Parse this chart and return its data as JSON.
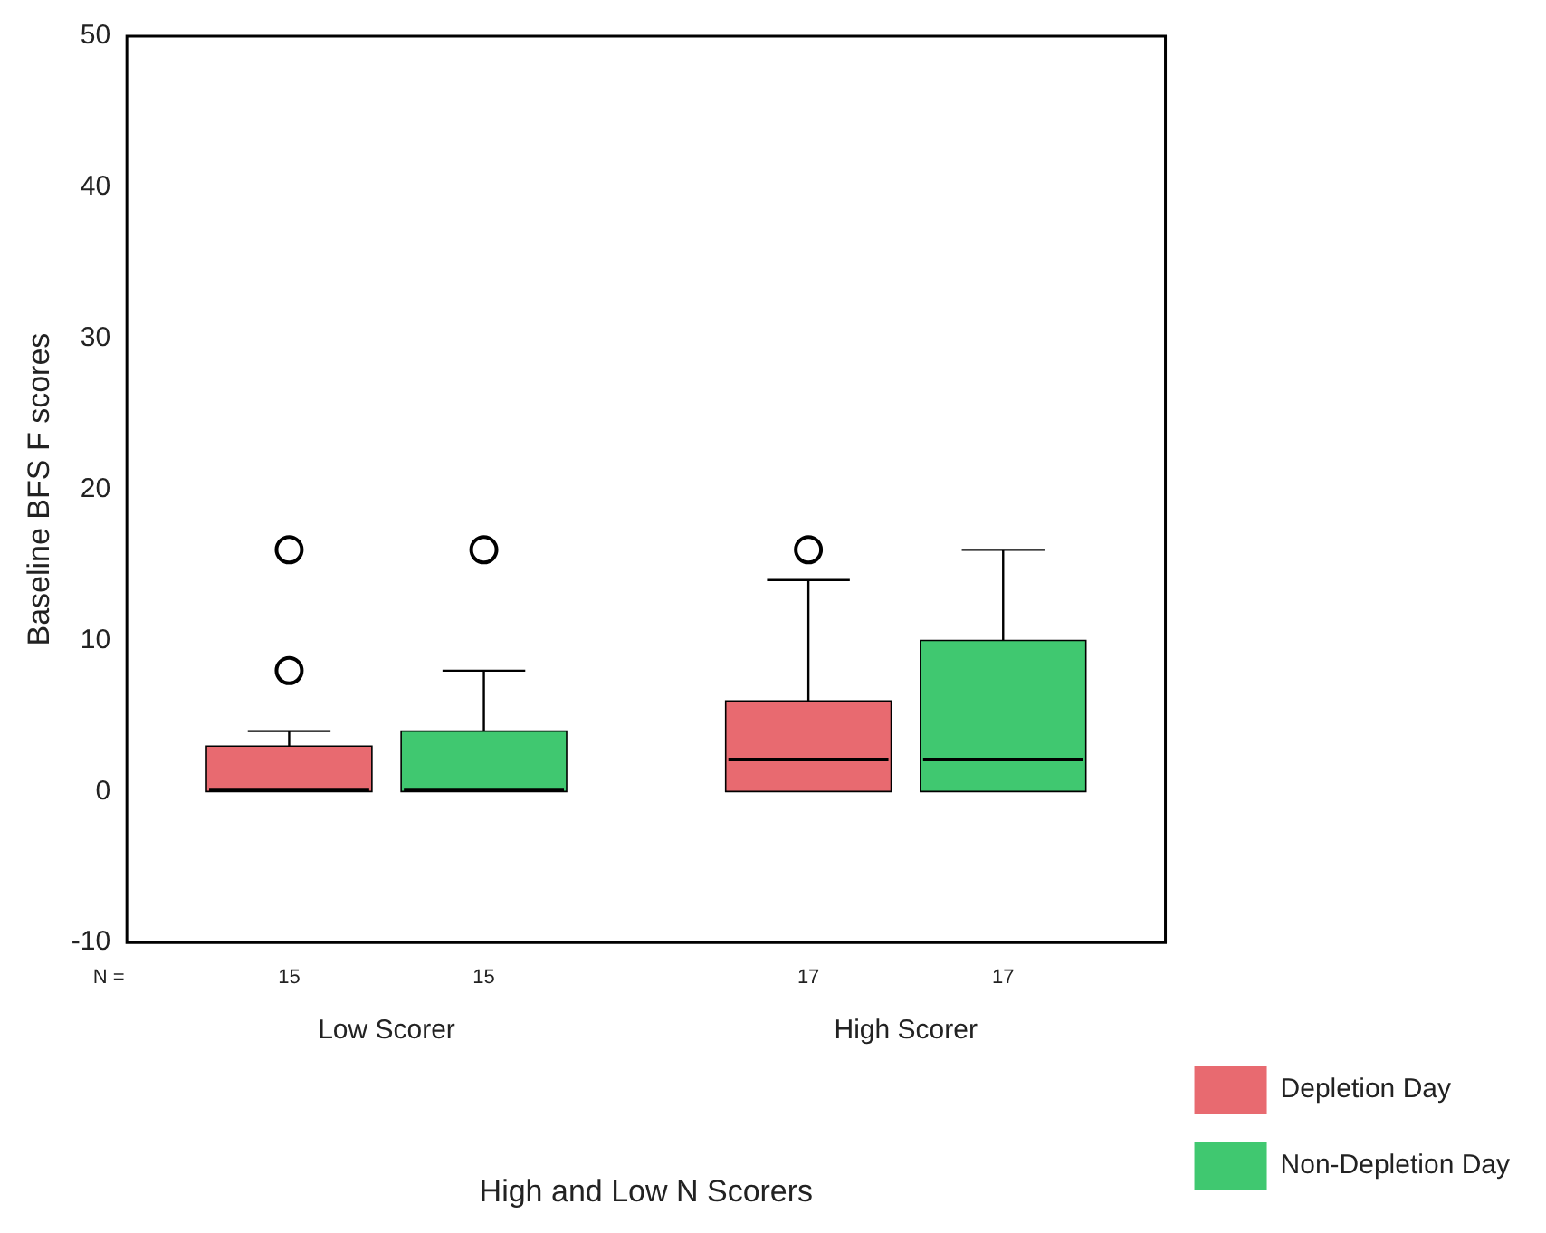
{
  "chart_data": {
    "type": "box",
    "xlabel": "High and Low N Scorers",
    "ylabel": "Baseline BFS F scores",
    "categories": [
      "Low Scorer",
      "High Scorer"
    ],
    "series": [
      {
        "name": "Depletion Day",
        "color": "#e86a70",
        "boxes": [
          {
            "low": 0,
            "q1": 0,
            "median": 0,
            "q3": 3,
            "high": 4,
            "outliers": [
              8,
              16
            ]
          },
          {
            "low": 0,
            "q1": 0,
            "median": 2,
            "q3": 6,
            "high": 14,
            "outliers": [
              16
            ]
          }
        ]
      },
      {
        "name": "Non-Depletion Day",
        "color": "#40c870",
        "boxes": [
          {
            "low": 0,
            "q1": 0,
            "median": 0,
            "q3": 4,
            "high": 8,
            "outliers": [
              16
            ]
          },
          {
            "low": 0,
            "q1": 0,
            "median": 2,
            "q3": 10,
            "high": 16
          }
        ]
      }
    ],
    "ylim": [
      -10,
      50
    ],
    "yticks": [
      -10,
      0,
      10,
      20,
      30,
      40,
      50
    ],
    "grid": false,
    "legend": "bottom right",
    "annotations": [
      "N =",
      "15",
      "15",
      "17",
      "17"
    ]
  }
}
